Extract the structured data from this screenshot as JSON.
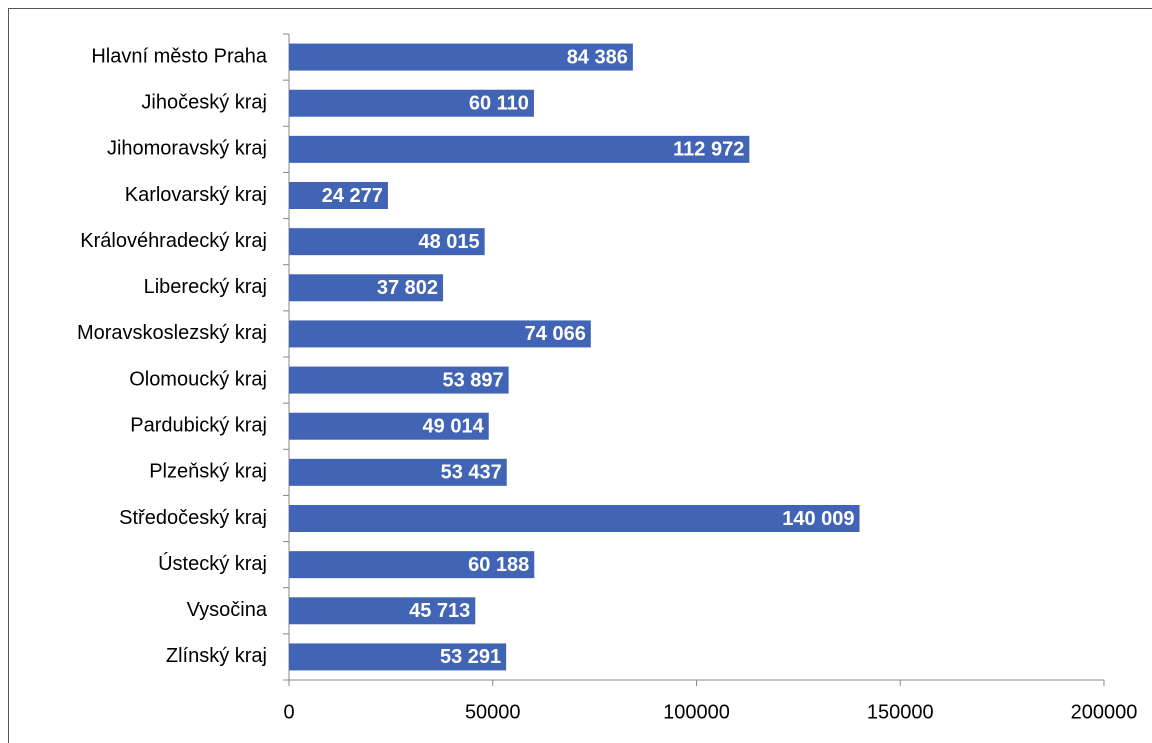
{
  "chart_data": {
    "type": "barh",
    "categories": [
      "Hlavní město Praha",
      "Jihočeský kraj",
      "Jihomoravský kraj",
      "Karlovarský kraj",
      "Královéhradecký kraj",
      "Liberecký kraj",
      "Moravskoslezský kraj",
      "Olomoucký kraj",
      "Pardubický kraj",
      "Plzeňský kraj",
      "Středočeský kraj",
      "Ústecký kraj",
      "Vysočina",
      "Zlínský kraj"
    ],
    "values": [
      84386,
      60110,
      112972,
      24277,
      48015,
      37802,
      74066,
      53897,
      49014,
      53437,
      140009,
      60188,
      45713,
      53291
    ],
    "value_labels": [
      "84 386",
      "60 110",
      "112 972",
      "24 277",
      "48 015",
      "37 802",
      "74 066",
      "53 897",
      "49 014",
      "53 437",
      "140 009",
      "60 188",
      "45 713",
      "53 291"
    ],
    "color": "#4264b4",
    "xlim": [
      0,
      200000
    ],
    "xticks": [
      0,
      50000,
      100000,
      150000,
      200000
    ]
  }
}
